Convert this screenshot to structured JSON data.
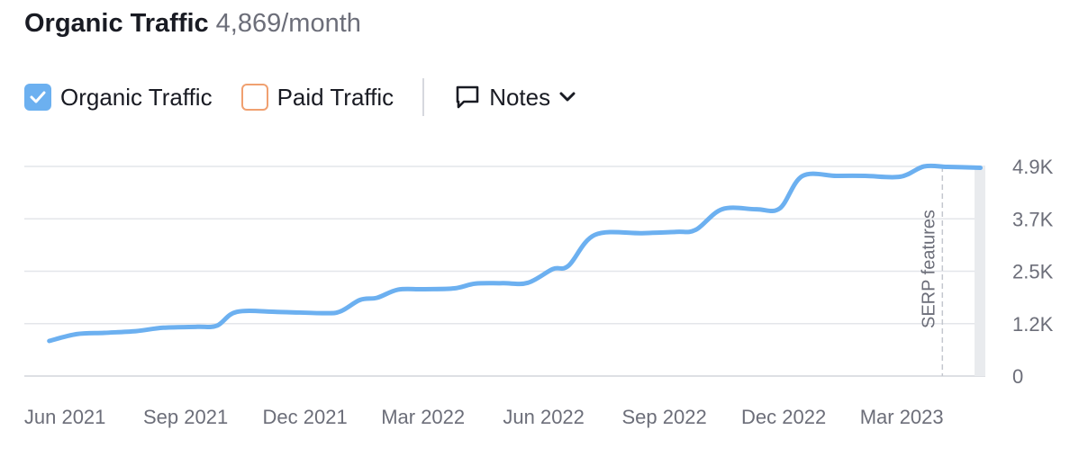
{
  "header": {
    "title": "Organic Traffic",
    "value": "4,869/month"
  },
  "legend": {
    "organic_label": "Organic Traffic",
    "organic_checked": true,
    "paid_label": "Paid Traffic",
    "paid_checked": false,
    "notes_label": "Notes"
  },
  "colors": {
    "organic_line": "#6cb0f0",
    "paid_border": "#f0a070",
    "grid": "#e4e6ea",
    "text_muted": "#6c6e79"
  },
  "icons": {
    "checkbox_checked": "checkmark-icon",
    "notes": "speech-bubble-icon",
    "chevron": "chevron-down-icon"
  },
  "chart_data": {
    "type": "line",
    "x_start": "2021-05",
    "x_end": "2023-05",
    "x_ticks": [
      {
        "label": "Jun 2021",
        "date": "2021-06"
      },
      {
        "label": "Sep 2021",
        "date": "2021-09"
      },
      {
        "label": "Dec 2021",
        "date": "2021-12"
      },
      {
        "label": "Mar 2022",
        "date": "2022-03"
      },
      {
        "label": "Jun 2022",
        "date": "2022-06"
      },
      {
        "label": "Sep 2022",
        "date": "2022-09"
      },
      {
        "label": "Dec 2022",
        "date": "2022-12"
      },
      {
        "label": "Mar 2023",
        "date": "2023-03"
      }
    ],
    "y_ticks": [
      {
        "label": "0",
        "value": 0
      },
      {
        "label": "1.2K",
        "value": 1225
      },
      {
        "label": "2.5K",
        "value": 2450
      },
      {
        "label": "3.7K",
        "value": 3675
      },
      {
        "label": "4.9K",
        "value": 4900
      }
    ],
    "ylim": [
      0,
      4900
    ],
    "grid": true,
    "series": [
      {
        "name": "Organic Traffic",
        "points": [
          {
            "x": "2021-05-20",
            "y": 820
          },
          {
            "x": "2021-06-10",
            "y": 980
          },
          {
            "x": "2021-07-01",
            "y": 1010
          },
          {
            "x": "2021-07-25",
            "y": 1050
          },
          {
            "x": "2021-08-15",
            "y": 1130
          },
          {
            "x": "2021-09-10",
            "y": 1150
          },
          {
            "x": "2021-09-25",
            "y": 1180
          },
          {
            "x": "2021-10-10",
            "y": 1500
          },
          {
            "x": "2021-11-10",
            "y": 1500
          },
          {
            "x": "2021-12-15",
            "y": 1470
          },
          {
            "x": "2021-12-28",
            "y": 1510
          },
          {
            "x": "2022-01-12",
            "y": 1780
          },
          {
            "x": "2022-01-25",
            "y": 1830
          },
          {
            "x": "2022-02-10",
            "y": 2020
          },
          {
            "x": "2022-03-01",
            "y": 2030
          },
          {
            "x": "2022-03-25",
            "y": 2050
          },
          {
            "x": "2022-04-10",
            "y": 2160
          },
          {
            "x": "2022-05-01",
            "y": 2170
          },
          {
            "x": "2022-05-20",
            "y": 2180
          },
          {
            "x": "2022-06-08",
            "y": 2500
          },
          {
            "x": "2022-06-20",
            "y": 2580
          },
          {
            "x": "2022-07-10",
            "y": 3300
          },
          {
            "x": "2022-08-15",
            "y": 3340
          },
          {
            "x": "2022-09-10",
            "y": 3370
          },
          {
            "x": "2022-09-25",
            "y": 3420
          },
          {
            "x": "2022-10-15",
            "y": 3900
          },
          {
            "x": "2022-11-10",
            "y": 3900
          },
          {
            "x": "2022-11-28",
            "y": 3920
          },
          {
            "x": "2022-12-15",
            "y": 4670
          },
          {
            "x": "2023-01-10",
            "y": 4680
          },
          {
            "x": "2023-02-01",
            "y": 4680
          },
          {
            "x": "2023-02-28",
            "y": 4660
          },
          {
            "x": "2023-03-18",
            "y": 4900
          },
          {
            "x": "2023-04-05",
            "y": 4890
          },
          {
            "x": "2023-04-30",
            "y": 4869
          }
        ]
      }
    ],
    "annotations": [
      {
        "label": "SERP features",
        "x": "2023-04-01"
      }
    ]
  }
}
